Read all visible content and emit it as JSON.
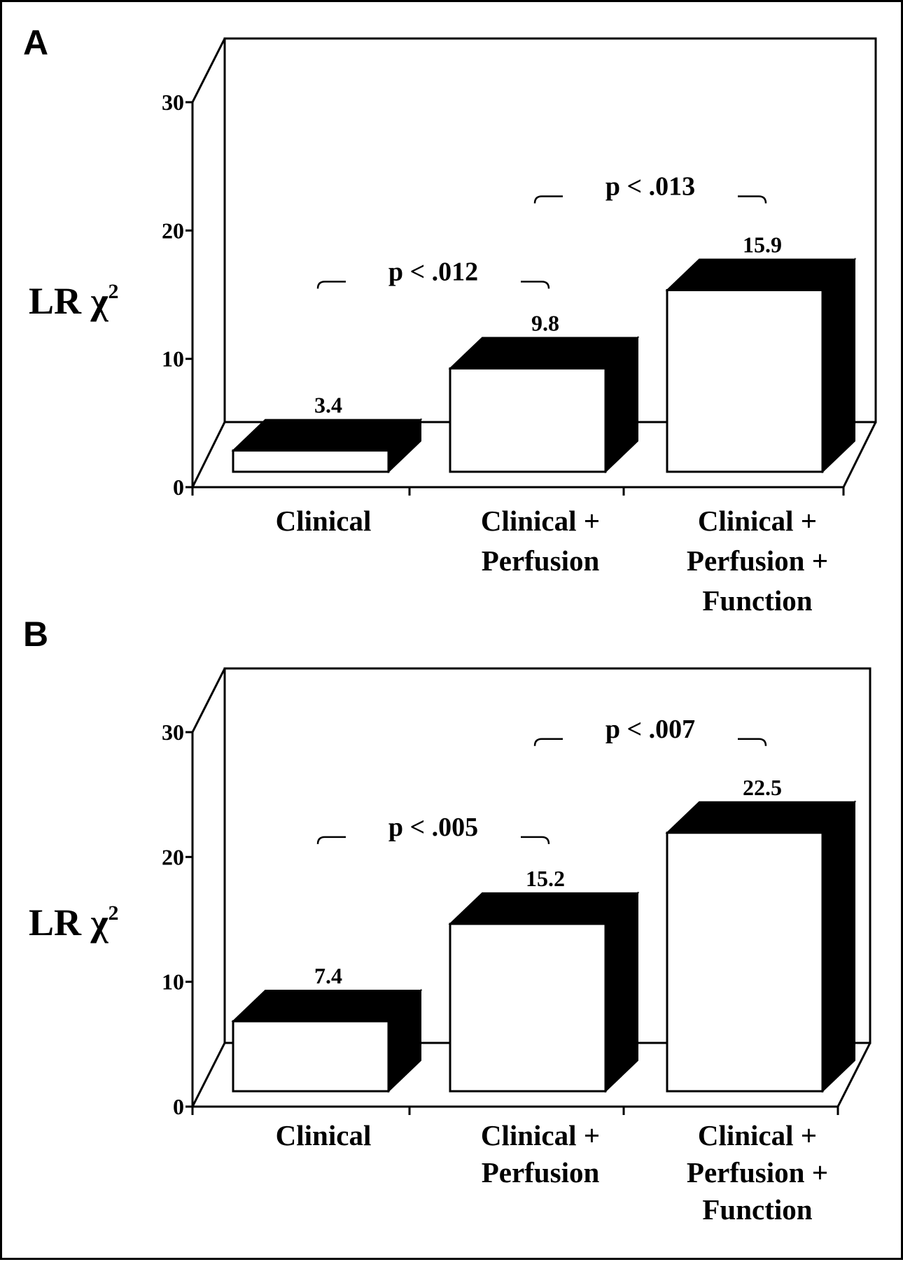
{
  "chart_data": [
    {
      "type": "bar",
      "panel": "A",
      "ylabel": "LR χ2",
      "ylim": [
        0,
        30
      ],
      "yticks": [
        0,
        10,
        20,
        30
      ],
      "categories": [
        [
          "Clinical"
        ],
        [
          "Clinical +",
          "Perfusion"
        ],
        [
          "Clinical +",
          "Perfusion +",
          "Function"
        ]
      ],
      "values": [
        3.4,
        9.8,
        15.9
      ],
      "value_labels": [
        "3.4",
        "9.8",
        "15.9"
      ],
      "comparisons": [
        {
          "from": 0,
          "to": 1,
          "label": "p < .012"
        },
        {
          "from": 1,
          "to": 2,
          "label": "p < .013"
        }
      ]
    },
    {
      "type": "bar",
      "panel": "B",
      "ylabel": "LR χ2",
      "ylim": [
        0,
        30
      ],
      "yticks": [
        0,
        10,
        20,
        30
      ],
      "categories": [
        [
          "Clinical"
        ],
        [
          "Clinical +",
          "Perfusion"
        ],
        [
          "Clinical +",
          "Perfusion +",
          "Function"
        ]
      ],
      "values": [
        7.4,
        15.2,
        22.5
      ],
      "value_labels": [
        "7.4",
        "15.2",
        "22.5"
      ],
      "comparisons": [
        {
          "from": 0,
          "to": 1,
          "label": "p < .005"
        },
        {
          "from": 1,
          "to": 2,
          "label": "p < .007"
        }
      ]
    }
  ]
}
